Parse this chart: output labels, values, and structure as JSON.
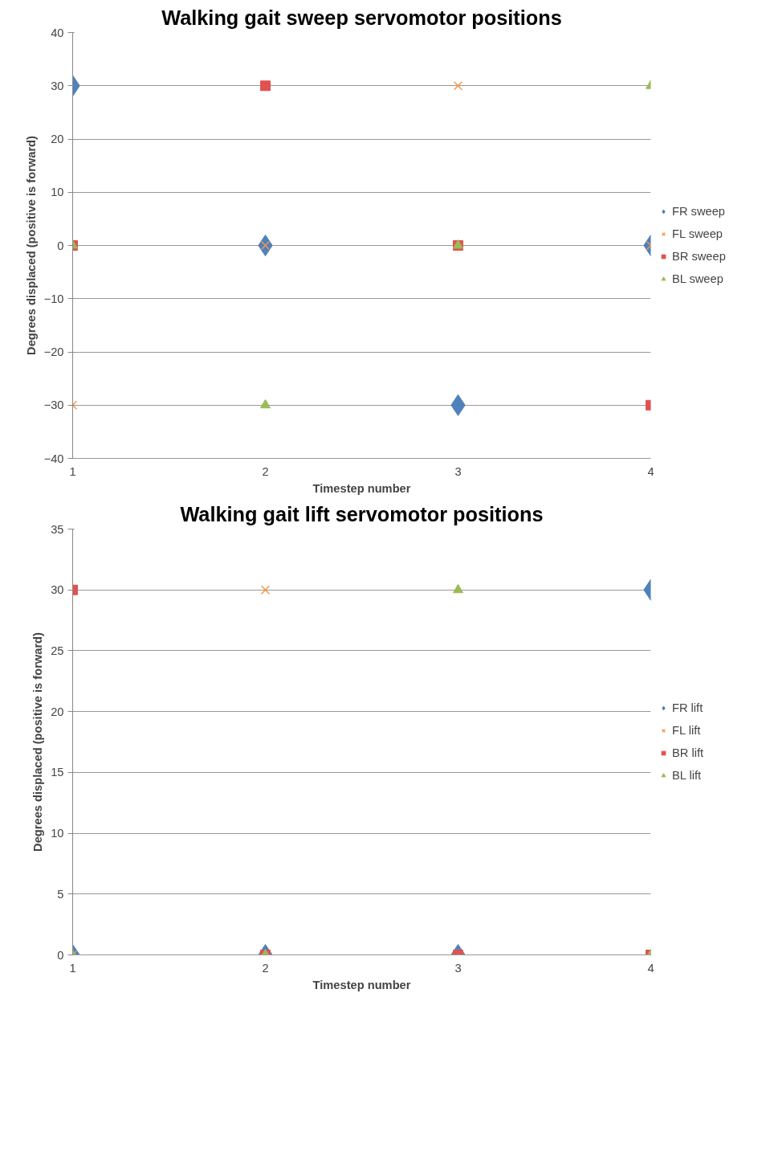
{
  "chart_data": [
    {
      "type": "scatter",
      "title": "Walking gait sweep servomotor positions",
      "xlabel": "Timestep number",
      "ylabel": "Degrees displaced (positive is forward)",
      "x": [
        1,
        2,
        3,
        4
      ],
      "xlim": [
        1,
        4
      ],
      "xticks": [
        1,
        2,
        3,
        4
      ],
      "ylim": [
        -40,
        40
      ],
      "yticks": [
        -40,
        -30,
        -20,
        -10,
        0,
        10,
        20,
        30,
        40
      ],
      "grid": "y",
      "legend": "right",
      "series": [
        {
          "name": "FR sweep",
          "color": "#4f81bd",
          "marker": "diamond",
          "values": [
            30,
            0,
            -30,
            0
          ]
        },
        {
          "name": "FL sweep",
          "color": "#f79646",
          "marker": "cross",
          "values": [
            -30,
            0,
            30,
            0
          ]
        },
        {
          "name": "BR sweep",
          "color": "#e0524f",
          "marker": "square",
          "values": [
            0,
            30,
            0,
            -30
          ]
        },
        {
          "name": "BL sweep",
          "color": "#9bbb59",
          "marker": "triangle",
          "values": [
            0,
            -30,
            0,
            30
          ]
        }
      ]
    },
    {
      "type": "scatter",
      "title": "Walking gait lift servomotor positions",
      "xlabel": "Timestep number",
      "ylabel": "Degrees displaced (positive is forward)",
      "x": [
        1,
        2,
        3,
        4
      ],
      "xlim": [
        1,
        4
      ],
      "xticks": [
        1,
        2,
        3,
        4
      ],
      "ylim": [
        0,
        35
      ],
      "yticks": [
        0,
        5,
        10,
        15,
        20,
        25,
        30,
        35
      ],
      "grid": "y",
      "legend": "right",
      "series": [
        {
          "name": "FR lift",
          "color": "#4f81bd",
          "marker": "diamond",
          "values": [
            0,
            0,
            0,
            30
          ]
        },
        {
          "name": "FL lift",
          "color": "#f79646",
          "marker": "cross",
          "values": [
            0,
            30,
            null,
            0
          ]
        },
        {
          "name": "BR lift",
          "color": "#e0524f",
          "marker": "square",
          "values": [
            30,
            0,
            0,
            0
          ]
        },
        {
          "name": "BL lift",
          "color": "#9bbb59",
          "marker": "triangle",
          "values": [
            0,
            0,
            30,
            0
          ]
        }
      ]
    }
  ]
}
